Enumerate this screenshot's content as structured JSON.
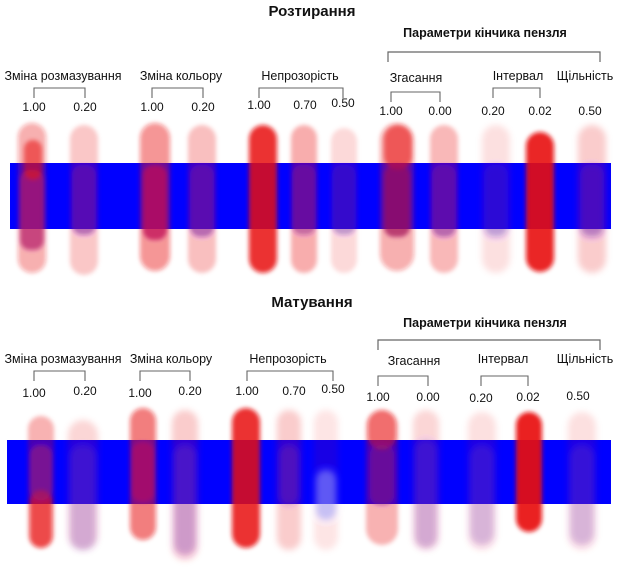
{
  "sections": [
    {
      "title": "Розтирання",
      "brush_tip_header": "Параметри кінчика пензля",
      "groups": [
        {
          "label": "Зміна розмазування",
          "values": [
            "1.00",
            "0.20"
          ]
        },
        {
          "label": "Зміна кольору",
          "values": [
            "1.00",
            "0.20"
          ]
        },
        {
          "label": "Непрозорість",
          "values": [
            "1.00",
            "0.70",
            "0.50"
          ]
        },
        {
          "label": "Згасання",
          "values": [
            "1.00",
            "0.00"
          ]
        },
        {
          "label": "Інтервал",
          "values": [
            "0.20",
            "0.02"
          ]
        },
        {
          "label": "Щільність",
          "values": [
            "0.50"
          ]
        }
      ]
    },
    {
      "title": "Матування",
      "brush_tip_header": "Параметри кінчика пензля",
      "groups": [
        {
          "label": "Зміна розмазування",
          "values": [
            "1.00",
            "0.20"
          ]
        },
        {
          "label": "Зміна кольору",
          "values": [
            "1.00",
            "0.20"
          ]
        },
        {
          "label": "Непрозорість",
          "values": [
            "1.00",
            "0.70",
            "0.50"
          ]
        },
        {
          "label": "Згасання",
          "values": [
            "1.00",
            "0.00"
          ]
        },
        {
          "label": "Інтервал",
          "values": [
            "0.20",
            "0.02"
          ]
        },
        {
          "label": "Щільність",
          "values": [
            "0.50"
          ]
        }
      ]
    }
  ],
  "colors": {
    "band": "#0000ff",
    "stroke": "#e81010",
    "mixed": "#7a1aa0"
  }
}
